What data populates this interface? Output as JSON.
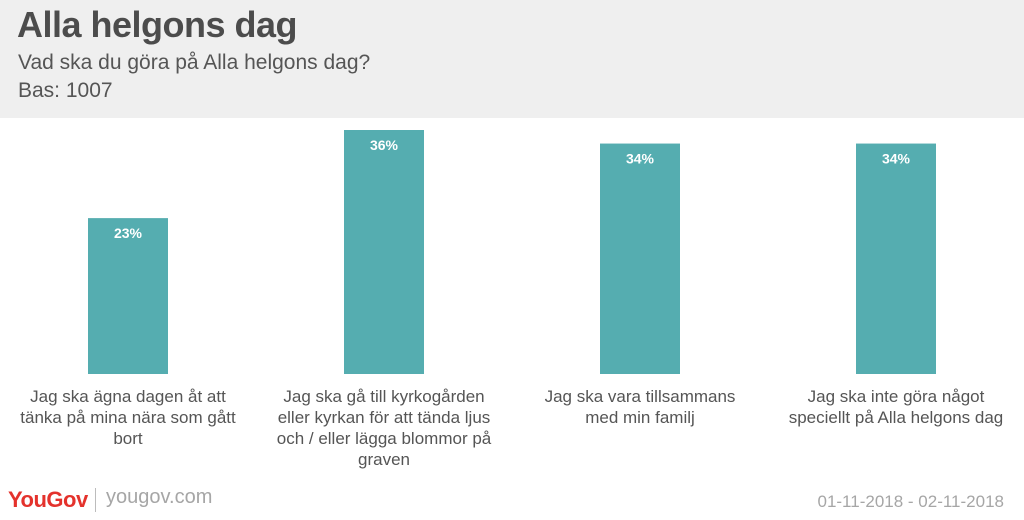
{
  "header": {
    "title": "Alla helgons dag",
    "subtitle": "Vad ska du göra på Alla helgons dag?",
    "base": "Bas: 1007"
  },
  "footer": {
    "brand": "YouGov",
    "url": "yougov.com",
    "dates": "01-11-2018 - 02-11-2018"
  },
  "colors": {
    "bar": "#55adb0",
    "header_bg": "#efefef",
    "brand_red": "#e4322c"
  },
  "chart_data": {
    "type": "bar",
    "categories": [
      [
        "Jag ska ägna dagen åt att",
        "tänka på mina nära som gått",
        "bort"
      ],
      [
        "Jag ska gå till kyrkogården",
        "eller kyrkan för att tända ljus",
        "och / eller lägga blommor på",
        "graven"
      ],
      [
        "Jag ska vara tillsammans",
        "med min familj"
      ],
      [
        "Jag ska inte göra något",
        "speciellt på Alla helgons dag"
      ]
    ],
    "values": [
      23,
      36,
      34,
      34
    ],
    "labels": [
      "23%",
      "36%",
      "34%",
      "34%"
    ],
    "title": "",
    "xlabel": "",
    "ylabel": "",
    "ylim": [
      0,
      36
    ],
    "grid": false,
    "legend": "none"
  }
}
